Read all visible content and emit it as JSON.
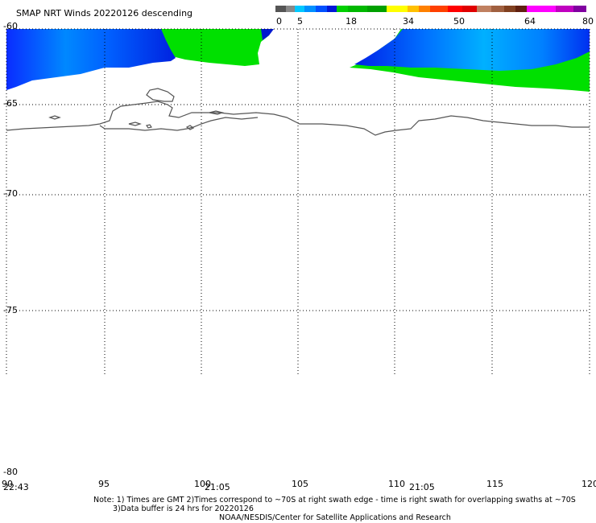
{
  "title": "SMAP NRT Winds  20220126 descending",
  "colorbar": {
    "ticks": [
      "0",
      "5",
      "18",
      "34",
      "50",
      "64",
      "80"
    ],
    "segments": [
      {
        "color": "#555555"
      },
      {
        "color": "#888888"
      },
      {
        "color": "#00c8ff"
      },
      {
        "color": "#0090ff"
      },
      {
        "color": "#0050ff"
      },
      {
        "color": "#0018d8"
      },
      {
        "color": "#00d000"
      },
      {
        "color": "#00b800"
      },
      {
        "color": "#00a000"
      },
      {
        "color": "#ffff00"
      },
      {
        "color": "#ffc000"
      },
      {
        "color": "#ff8000"
      },
      {
        "color": "#ff4000"
      },
      {
        "color": "#ff0000"
      },
      {
        "color": "#e00000"
      },
      {
        "color": "#c08060"
      },
      {
        "color": "#a06040"
      },
      {
        "color": "#804020"
      },
      {
        "color": "#602010"
      },
      {
        "color": "#ff00ff"
      },
      {
        "color": "#c000c0"
      },
      {
        "color": "#8000a0"
      }
    ]
  },
  "map": {
    "lat_labels": [
      "-60",
      "-65",
      "-70",
      "-75",
      "-80"
    ],
    "lon_labels": [
      "90",
      "95",
      "100",
      "105",
      "110",
      "115",
      "120"
    ],
    "time_labels": [
      "22:43",
      "21:05",
      "21:05"
    ]
  },
  "notes": {
    "line1": "Note: 1) Times are GMT 2)Times correspond to ~70S at right swath edge - time is right swath for overlapping swaths at ~70S",
    "line2": "3)Data buffer is 24 hrs for 20220126",
    "line3": "NOAA/NESDIS/Center for Satellite Applications and Research"
  },
  "colors": {
    "coast": "#555555",
    "grid": "#000000"
  }
}
